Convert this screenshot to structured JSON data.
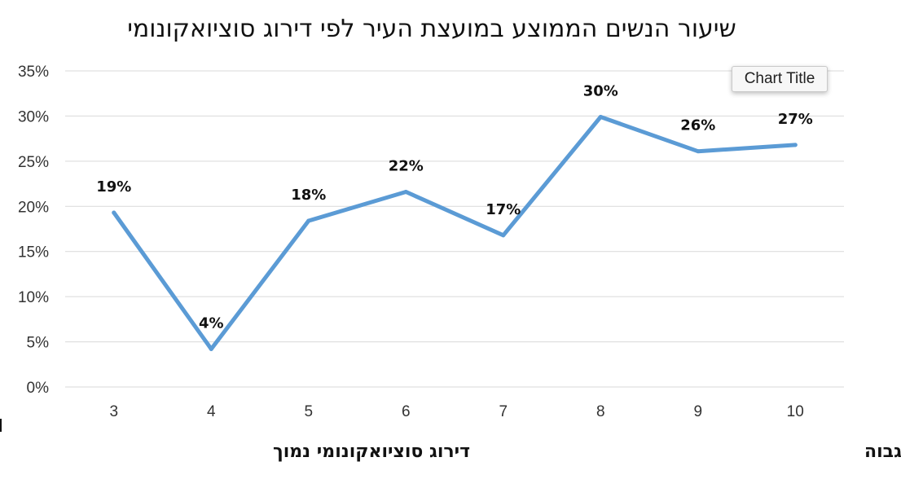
{
  "chart_data": {
    "type": "line",
    "title": "שיעור הנשים הממוצע במועצת העיר לפי דירוג סוציואקונומי",
    "categories": [
      "3",
      "4",
      "5",
      "6",
      "7",
      "8",
      "9",
      "10"
    ],
    "series": [
      {
        "values": [
          19.3,
          4.2,
          18.4,
          21.6,
          16.8,
          29.9,
          26.1,
          26.8
        ],
        "data_labels": [
          "19%",
          "4%",
          "18%",
          "22%",
          "17%",
          "30%",
          "26%",
          "27%"
        ]
      }
    ],
    "y_ticks": [
      "0%",
      "5%",
      "10%",
      "15%",
      "20%",
      "25%",
      "30%",
      "35%"
    ],
    "ylim": [
      0,
      35
    ],
    "y_unit": "percent",
    "grid": true,
    "legend": "none",
    "line_color": "#5b9bd5",
    "annotations": {
      "low_end": "דירוג סוציואקונומי נמוך",
      "high_end": "דירוג סוציואקונומי גבוה"
    }
  },
  "tooltip": {
    "text": "Chart Title"
  }
}
